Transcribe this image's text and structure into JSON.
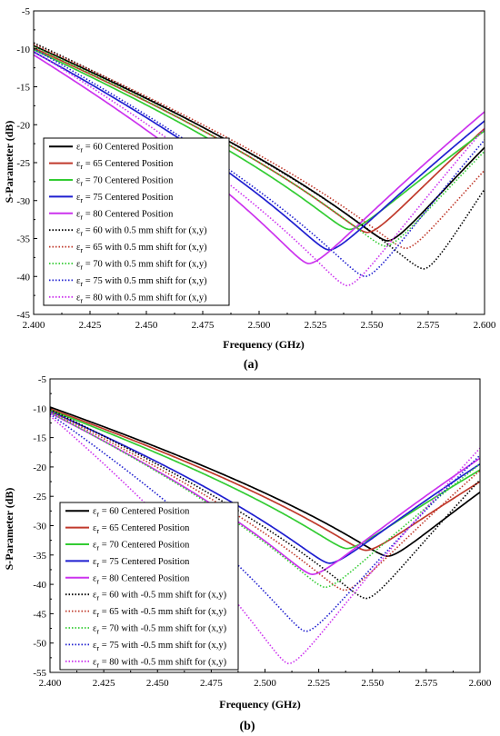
{
  "figure": {
    "panels": [
      {
        "label": "(a)",
        "xlabel": "Frequency (GHz)",
        "ylabel": "S-Parameter (dB)"
      },
      {
        "label": "(b)",
        "xlabel": "Frequency (GHz)",
        "ylabel": "S-Parameter (dB)"
      }
    ]
  },
  "chart_data": [
    {
      "type": "line",
      "panel_label": "(a)",
      "xlabel": "Frequency (GHz)",
      "ylabel": "S-Parameter (dB)",
      "xlim": [
        2.4,
        2.6
      ],
      "ylim": [
        -45,
        -5
      ],
      "xticks": [
        "2.400",
        "2.425",
        "2.450",
        "2.475",
        "2.500",
        "2.525",
        "2.550",
        "2.575",
        "2.600"
      ],
      "yticks": [
        "-5",
        "-10",
        "-15",
        "-20",
        "-25",
        "-30",
        "-35",
        "-40",
        "-45"
      ],
      "grid": false,
      "legend_position": "left",
      "series": [
        {
          "name": "εr = 60 Centered Position",
          "color": "#000000",
          "style": "solid",
          "f0": 2.557,
          "min": -35.3,
          "start": -9.6,
          "end": -23.0
        },
        {
          "name": "εr = 65 Centered Position",
          "color": "#c0392b",
          "style": "solid",
          "f0": 2.548,
          "min": -34.2,
          "start": -9.9,
          "end": -20.5
        },
        {
          "name": "εr = 70 Centered Position",
          "color": "#33cc33",
          "style": "solid",
          "f0": 2.54,
          "min": -33.8,
          "start": -10.1,
          "end": -20.8
        },
        {
          "name": "εr = 75 Centered Position",
          "color": "#1f1fd0",
          "style": "solid",
          "f0": 2.531,
          "min": -36.5,
          "start": -10.4,
          "end": -19.5
        },
        {
          "name": "εr = 80 Centered Position",
          "color": "#cc33ee",
          "style": "solid",
          "f0": 2.522,
          "min": -38.3,
          "start": -10.8,
          "end": -18.3
        },
        {
          "name": "εr = 60 with 0.5 mm shift for (x,y)",
          "color": "#000000",
          "style": "dotted",
          "f0": 2.573,
          "min": -39.0,
          "start": -9.2,
          "end": -28.5
        },
        {
          "name": "εr = 65 with 0.5 mm shift for (x,y)",
          "color": "#c0392b",
          "style": "dotted",
          "f0": 2.565,
          "min": -36.3,
          "start": -9.4,
          "end": -26.0
        },
        {
          "name": "εr = 70 with 0.5 mm shift for (x,y)",
          "color": "#33cc33",
          "style": "dotted",
          "f0": 2.556,
          "min": -36.0,
          "start": -9.7,
          "end": -23.5
        },
        {
          "name": "εr = 75 with 0.5 mm shift for (x,y)",
          "color": "#1f1fd0",
          "style": "dotted",
          "f0": 2.547,
          "min": -40.0,
          "start": -10.0,
          "end": -22.0
        },
        {
          "name": "εr = 80 with 0.5 mm shift for (x,y)",
          "color": "#cc33ee",
          "style": "dotted",
          "f0": 2.539,
          "min": -41.2,
          "start": -10.3,
          "end": -20.5
        }
      ]
    },
    {
      "type": "line",
      "panel_label": "(b)",
      "xlabel": "Frequency (GHz)",
      "ylabel": "S-Parameter (dB)",
      "xlim": [
        2.4,
        2.6
      ],
      "ylim": [
        -55,
        -5
      ],
      "xticks": [
        "2.400",
        "2.425",
        "2.450",
        "2.475",
        "2.500",
        "2.525",
        "2.550",
        "2.575",
        "2.600"
      ],
      "yticks": [
        "-5",
        "-10",
        "-15",
        "-20",
        "-25",
        "-30",
        "-35",
        "-40",
        "-45",
        "-50",
        "-55"
      ],
      "grid": false,
      "legend_position": "bottom-left",
      "series": [
        {
          "name": "εr = 60 Centered Position",
          "color": "#000000",
          "style": "solid",
          "f0": 2.557,
          "min": -35.2,
          "start": -9.8,
          "end": -24.3
        },
        {
          "name": "εr = 65 Centered Position",
          "color": "#c0392b",
          "style": "solid",
          "f0": 2.547,
          "min": -34.2,
          "start": -10.1,
          "end": -22.5
        },
        {
          "name": "εr = 70 Centered Position",
          "color": "#33cc33",
          "style": "solid",
          "f0": 2.538,
          "min": -33.9,
          "start": -10.3,
          "end": -20.5
        },
        {
          "name": "εr = 75 Centered Position",
          "color": "#1f1fd0",
          "style": "solid",
          "f0": 2.53,
          "min": -36.4,
          "start": -10.5,
          "end": -19.5
        },
        {
          "name": "εr = 80 Centered Position",
          "color": "#cc33ee",
          "style": "solid",
          "f0": 2.522,
          "min": -38.3,
          "start": -10.8,
          "end": -18.5
        },
        {
          "name": "εr = 60 with -0.5 mm shift for (x,y)",
          "color": "#000000",
          "style": "dotted",
          "f0": 2.547,
          "min": -42.4,
          "start": -10.2,
          "end": -22.2
        },
        {
          "name": "εr = 65 with -0.5 mm shift for (x,y)",
          "color": "#c0392b",
          "style": "dotted",
          "f0": 2.537,
          "min": -41.0,
          "start": -10.5,
          "end": -20.6
        },
        {
          "name": "εr = 70 with -0.5 mm shift for (x,y)",
          "color": "#33cc33",
          "style": "dotted",
          "f0": 2.528,
          "min": -40.5,
          "start": -10.7,
          "end": -19.5
        },
        {
          "name": "εr = 75 with -0.5 mm shift for (x,y)",
          "color": "#1f1fd0",
          "style": "dotted",
          "f0": 2.519,
          "min": -48.0,
          "start": -11.0,
          "end": -18.0
        },
        {
          "name": "εr = 80 with -0.5 mm shift for (x,y)",
          "color": "#cc33ee",
          "style": "dotted",
          "f0": 2.511,
          "min": -53.5,
          "start": -11.3,
          "end": -16.8
        }
      ]
    }
  ]
}
